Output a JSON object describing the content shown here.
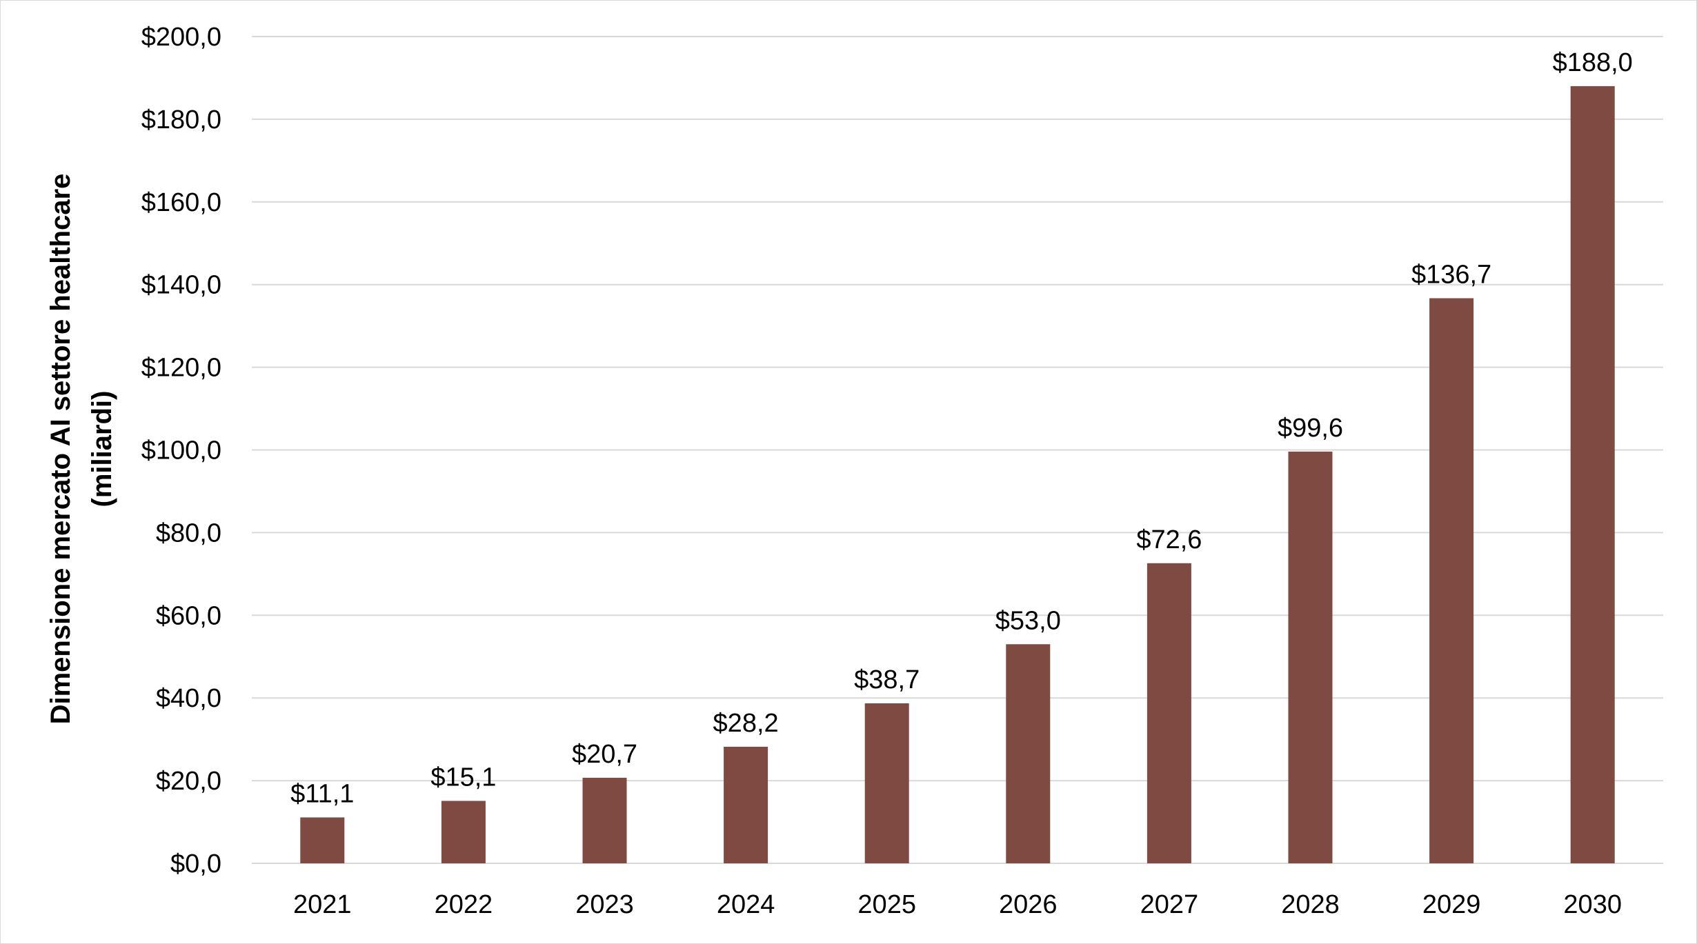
{
  "chart_data": {
    "type": "bar",
    "title": "",
    "xlabel": "",
    "ylabel": "Dimensione mercato AI settore healthcare",
    "ylabel_line2": "(miliardi)",
    "categories": [
      "2021",
      "2022",
      "2023",
      "2024",
      "2025",
      "2026",
      "2027",
      "2028",
      "2029",
      "2030"
    ],
    "values": [
      11.1,
      15.1,
      20.7,
      28.2,
      38.7,
      53.0,
      72.6,
      99.6,
      136.7,
      188.0
    ],
    "data_labels": [
      "$11,1",
      "$15,1",
      "$20,7",
      "$28,2",
      "$38,7",
      "$53,0",
      "$72,6",
      "$99,6",
      "$136,7",
      "$188,0"
    ],
    "ylim": [
      0,
      200
    ],
    "yticks": [
      0,
      20,
      40,
      60,
      80,
      100,
      120,
      140,
      160,
      180,
      200
    ],
    "ytick_labels": [
      "$0,0",
      "$20,0",
      "$40,0",
      "$60,0",
      "$80,0",
      "$100,0",
      "$120,0",
      "$140,0",
      "$160,0",
      "$180,0",
      "$200,0"
    ],
    "grid": true,
    "legend": "none",
    "bar_color": "#7f4a42"
  }
}
